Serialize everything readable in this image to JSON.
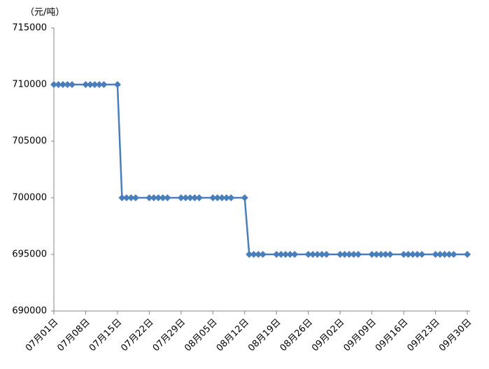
{
  "chart_data": {
    "type": "line",
    "y_unit_label": "（元/吨）",
    "x": [
      "07月01日",
      "07月02日",
      "07月03日",
      "07月04日",
      "07月05日",
      "07月08日",
      "07月09日",
      "07月10日",
      "07月11日",
      "07月12日",
      "07月15日",
      "07月16日",
      "07月17日",
      "07月18日",
      "07月19日",
      "07月22日",
      "07月23日",
      "07月24日",
      "07月25日",
      "07月26日",
      "07月29日",
      "07月30日",
      "07月31日",
      "08月01日",
      "08月02日",
      "08月05日",
      "08月06日",
      "08月07日",
      "08月08日",
      "08月09日",
      "08月12日",
      "08月13日",
      "08月14日",
      "08月15日",
      "08月16日",
      "08月19日",
      "08月20日",
      "08月21日",
      "08月22日",
      "08月23日",
      "08月26日",
      "08月27日",
      "08月28日",
      "08月29日",
      "08月30日",
      "09月02日",
      "09月03日",
      "09月04日",
      "09月05日",
      "09月06日",
      "09月09日",
      "09月10日",
      "09月11日",
      "09月12日",
      "09月13日",
      "09月16日",
      "09月17日",
      "09月18日",
      "09月19日",
      "09月20日",
      "09月23日",
      "09月24日",
      "09月25日",
      "09月26日",
      "09月27日",
      "09月30日"
    ],
    "series": [
      {
        "color": "#4a7ebb",
        "values": [
          710000,
          710000,
          710000,
          710000,
          710000,
          710000,
          710000,
          710000,
          710000,
          710000,
          710000,
          700000,
          700000,
          700000,
          700000,
          700000,
          700000,
          700000,
          700000,
          700000,
          700000,
          700000,
          700000,
          700000,
          700000,
          700000,
          700000,
          700000,
          700000,
          700000,
          700000,
          695000,
          695000,
          695000,
          695000,
          695000,
          695000,
          695000,
          695000,
          695000,
          695000,
          695000,
          695000,
          695000,
          695000,
          695000,
          695000,
          695000,
          695000,
          695000,
          695000,
          695000,
          695000,
          695000,
          695000,
          695000,
          695000,
          695000,
          695000,
          695000,
          695000,
          695000,
          695000,
          695000,
          695000,
          695000
        ]
      }
    ],
    "xlim": [
      "07月01日",
      "09月30日"
    ],
    "xticks": [
      "07月01日",
      "07月08日",
      "07月15日",
      "07月22日",
      "07月29日",
      "08月05日",
      "08月12日",
      "08月19日",
      "08月26日",
      "09月02日",
      "09月09日",
      "09月16日",
      "09月23日",
      "09月30日"
    ],
    "ylim": [
      690000,
      715000
    ],
    "yticks": [
      690000,
      695000,
      700000,
      705000,
      710000,
      715000
    ],
    "grid": false
  }
}
